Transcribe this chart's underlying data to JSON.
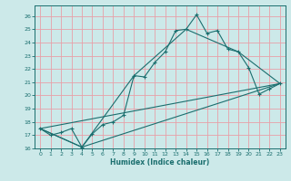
{
  "title": "",
  "xlabel": "Humidex (Indice chaleur)",
  "xlim": [
    -0.5,
    23.5
  ],
  "ylim": [
    16,
    26.8
  ],
  "yticks": [
    16,
    17,
    18,
    19,
    20,
    21,
    22,
    23,
    24,
    25,
    26
  ],
  "xticks": [
    0,
    1,
    2,
    3,
    4,
    5,
    6,
    7,
    8,
    9,
    10,
    11,
    12,
    13,
    14,
    15,
    16,
    17,
    18,
    19,
    20,
    21,
    22,
    23
  ],
  "background_color": "#cce9e9",
  "grid_color": "#e8a0a8",
  "line_color": "#1a6e6e",
  "line0_x": [
    0,
    1,
    2,
    3,
    4,
    5,
    6,
    7,
    8,
    9,
    10,
    11,
    12,
    13,
    14,
    15,
    16,
    17,
    18,
    19,
    20,
    21,
    22,
    23
  ],
  "line0_y": [
    17.5,
    17.0,
    17.2,
    17.5,
    16.1,
    17.1,
    17.8,
    18.0,
    18.5,
    21.5,
    21.4,
    22.5,
    23.3,
    24.9,
    25.0,
    26.1,
    24.7,
    24.9,
    23.5,
    23.3,
    22.1,
    20.1,
    20.5,
    20.9
  ],
  "line1_x": [
    0,
    4,
    9,
    14,
    19,
    23
  ],
  "line1_y": [
    17.5,
    16.1,
    21.5,
    25.0,
    23.3,
    20.9
  ],
  "line2_x": [
    0,
    4,
    23
  ],
  "line2_y": [
    17.5,
    16.1,
    20.9
  ],
  "line3_x": [
    0,
    23
  ],
  "line3_y": [
    17.5,
    20.9
  ]
}
